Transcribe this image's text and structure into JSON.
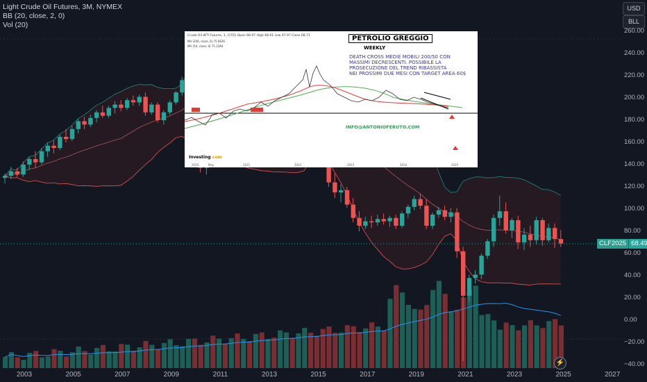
{
  "header": {
    "symbol_line": "Light Crude Oil Futures, 3M, NYMEX",
    "bb_line": "BB (20, close, 2, 0)",
    "vol_line": "Vol (20)"
  },
  "units": [
    "USD",
    "BLL"
  ],
  "price_label": {
    "symbol": "CLF2025",
    "value": "68.49"
  },
  "colors": {
    "up": "#26a69a",
    "down": "#ef5350",
    "basis": "#e57373",
    "band": "#26a69a",
    "vol_ma": "#2196f3",
    "bg": "#131722"
  },
  "icon_names": [
    "bolt-icon"
  ],
  "inset": {
    "title": "PETROLIO GREGGIO",
    "subtitle": "WEEKLY",
    "note_lines": [
      "DEATH CROSS MEDIE MOBILI 200/50 CON",
      "MASSIMI DECRESCENTI. POSSIBILE LA",
      "PROSECUZIONE DEL TREND RIBASSISTA",
      "NEI PROSSIMI DUE MESI CON TARGET AREA 60$"
    ],
    "email": "INFO@ANTONIOFERUTO.COM",
    "header_text": "Crude Oil WTI Futures, 1, (CFD)  Open 68.07  High 68.61  Low 67.97  Close 68.71",
    "ma_line1": "MA (200, close, 0)  75.6626",
    "ma_line2": "MA (50, close, 0)  71.2364",
    "brand": "Investing",
    "brand_suffix": ".com",
    "x_labels": [
      "2020",
      "May",
      "2021",
      "2022",
      "2023",
      "2024",
      "2025"
    ]
  },
  "chart_data": {
    "type": "candlestick",
    "title": "Light Crude Oil Futures, 3M, NYMEX",
    "x_ticks": [
      "2003",
      "2005",
      "2007",
      "2009",
      "2011",
      "2013",
      "2015",
      "2017",
      "2019",
      "2021",
      "2023",
      "2025",
      "2027"
    ],
    "y_ticks": [
      "260.00",
      "240.00",
      "220.00",
      "200.00",
      "180.00",
      "160.00",
      "140.00",
      "120.00",
      "100.00",
      "80.00",
      "60.00",
      "40.00",
      "20.00",
      "0.00",
      "−20.00",
      "−40.00"
    ],
    "ylim": [
      -40,
      260
    ],
    "last_price": 68.49,
    "candles": [
      {
        "o": 128,
        "h": 132,
        "l": 123,
        "c": 130
      },
      {
        "o": 130,
        "h": 138,
        "l": 127,
        "c": 134
      },
      {
        "o": 134,
        "h": 137,
        "l": 129,
        "c": 131
      },
      {
        "o": 131,
        "h": 143,
        "l": 129,
        "c": 140
      },
      {
        "o": 140,
        "h": 147,
        "l": 135,
        "c": 145
      },
      {
        "o": 145,
        "h": 152,
        "l": 137,
        "c": 142
      },
      {
        "o": 142,
        "h": 155,
        "l": 140,
        "c": 152
      },
      {
        "o": 152,
        "h": 160,
        "l": 147,
        "c": 157
      },
      {
        "o": 157,
        "h": 162,
        "l": 150,
        "c": 155
      },
      {
        "o": 155,
        "h": 167,
        "l": 153,
        "c": 165
      },
      {
        "o": 165,
        "h": 172,
        "l": 160,
        "c": 163
      },
      {
        "o": 163,
        "h": 175,
        "l": 161,
        "c": 172
      },
      {
        "o": 172,
        "h": 181,
        "l": 168,
        "c": 179
      },
      {
        "o": 179,
        "h": 183,
        "l": 172,
        "c": 176
      },
      {
        "o": 176,
        "h": 185,
        "l": 174,
        "c": 182
      },
      {
        "o": 182,
        "h": 189,
        "l": 178,
        "c": 187
      },
      {
        "o": 187,
        "h": 193,
        "l": 182,
        "c": 184
      },
      {
        "o": 184,
        "h": 193,
        "l": 182,
        "c": 191
      },
      {
        "o": 191,
        "h": 197,
        "l": 186,
        "c": 194
      },
      {
        "o": 194,
        "h": 198,
        "l": 188,
        "c": 191
      },
      {
        "o": 191,
        "h": 200,
        "l": 189,
        "c": 198
      },
      {
        "o": 198,
        "h": 202,
        "l": 193,
        "c": 196
      },
      {
        "o": 196,
        "h": 203,
        "l": 193,
        "c": 201
      },
      {
        "o": 201,
        "h": 205,
        "l": 184,
        "c": 187
      },
      {
        "o": 187,
        "h": 196,
        "l": 185,
        "c": 194
      },
      {
        "o": 194,
        "h": 196,
        "l": 178,
        "c": 180
      },
      {
        "o": 180,
        "h": 189,
        "l": 176,
        "c": 187
      },
      {
        "o": 187,
        "h": 198,
        "l": 185,
        "c": 196
      },
      {
        "o": 196,
        "h": 206,
        "l": 194,
        "c": 205
      },
      {
        "o": 205,
        "h": 219,
        "l": 202,
        "c": 216
      },
      {
        "o": 216,
        "h": 246,
        "l": 213,
        "c": 244
      },
      {
        "o": 244,
        "h": 252,
        "l": 217,
        "c": 219
      },
      {
        "o": 219,
        "h": 223,
        "l": 133,
        "c": 137
      },
      {
        "o": 137,
        "h": 166,
        "l": 131,
        "c": 160
      },
      {
        "o": 160,
        "h": 168,
        "l": 147,
        "c": 155
      },
      {
        "o": 155,
        "h": 172,
        "l": 152,
        "c": 170
      },
      {
        "o": 170,
        "h": 175,
        "l": 152,
        "c": 165
      },
      {
        "o": 165,
        "h": 180,
        "l": 162,
        "c": 174
      },
      {
        "o": 174,
        "h": 178,
        "l": 165,
        "c": 170
      },
      {
        "o": 170,
        "h": 184,
        "l": 167,
        "c": 180
      },
      {
        "o": 180,
        "h": 186,
        "l": 163,
        "c": 167
      },
      {
        "o": 167,
        "h": 180,
        "l": 164,
        "c": 176
      },
      {
        "o": 176,
        "h": 183,
        "l": 166,
        "c": 170
      },
      {
        "o": 170,
        "h": 183,
        "l": 168,
        "c": 180
      },
      {
        "o": 180,
        "h": 184,
        "l": 170,
        "c": 174
      },
      {
        "o": 174,
        "h": 182,
        "l": 170,
        "c": 179
      },
      {
        "o": 179,
        "h": 187,
        "l": 175,
        "c": 183
      },
      {
        "o": 183,
        "h": 187,
        "l": 176,
        "c": 178
      },
      {
        "o": 178,
        "h": 184,
        "l": 175,
        "c": 181
      },
      {
        "o": 181,
        "h": 189,
        "l": 178,
        "c": 185
      },
      {
        "o": 185,
        "h": 190,
        "l": 180,
        "c": 182
      },
      {
        "o": 182,
        "h": 188,
        "l": 170,
        "c": 173
      },
      {
        "o": 173,
        "h": 178,
        "l": 150,
        "c": 153
      },
      {
        "o": 153,
        "h": 156,
        "l": 120,
        "c": 124
      },
      {
        "o": 124,
        "h": 132,
        "l": 110,
        "c": 115
      },
      {
        "o": 115,
        "h": 122,
        "l": 106,
        "c": 117
      },
      {
        "o": 117,
        "h": 120,
        "l": 101,
        "c": 104
      },
      {
        "o": 104,
        "h": 110,
        "l": 88,
        "c": 92
      },
      {
        "o": 92,
        "h": 98,
        "l": 80,
        "c": 85
      },
      {
        "o": 85,
        "h": 93,
        "l": 82,
        "c": 89
      },
      {
        "o": 89,
        "h": 94,
        "l": 83,
        "c": 88
      },
      {
        "o": 88,
        "h": 95,
        "l": 85,
        "c": 91
      },
      {
        "o": 91,
        "h": 96,
        "l": 86,
        "c": 89
      },
      {
        "o": 89,
        "h": 94,
        "l": 84,
        "c": 92
      },
      {
        "o": 92,
        "h": 95,
        "l": 82,
        "c": 85
      },
      {
        "o": 85,
        "h": 98,
        "l": 83,
        "c": 96
      },
      {
        "o": 96,
        "h": 104,
        "l": 92,
        "c": 102
      },
      {
        "o": 102,
        "h": 112,
        "l": 99,
        "c": 109
      },
      {
        "o": 109,
        "h": 114,
        "l": 100,
        "c": 103
      },
      {
        "o": 103,
        "h": 109,
        "l": 82,
        "c": 85
      },
      {
        "o": 85,
        "h": 97,
        "l": 82,
        "c": 95
      },
      {
        "o": 95,
        "h": 102,
        "l": 92,
        "c": 99
      },
      {
        "o": 99,
        "h": 103,
        "l": 90,
        "c": 93
      },
      {
        "o": 93,
        "h": 101,
        "l": 88,
        "c": 97
      },
      {
        "o": 97,
        "h": 101,
        "l": 56,
        "c": 62
      },
      {
        "o": 62,
        "h": 66,
        "l": -37,
        "c": 22
      },
      {
        "o": 22,
        "h": 41,
        "l": 17,
        "c": 38
      },
      {
        "o": 38,
        "h": 45,
        "l": 33,
        "c": 41
      },
      {
        "o": 41,
        "h": 60,
        "l": 37,
        "c": 58
      },
      {
        "o": 58,
        "h": 73,
        "l": 55,
        "c": 71
      },
      {
        "o": 71,
        "h": 95,
        "l": 66,
        "c": 92
      },
      {
        "o": 92,
        "h": 112,
        "l": 85,
        "c": 98
      },
      {
        "o": 98,
        "h": 106,
        "l": 78,
        "c": 81
      },
      {
        "o": 81,
        "h": 92,
        "l": 74,
        "c": 90
      },
      {
        "o": 90,
        "h": 94,
        "l": 64,
        "c": 70
      },
      {
        "o": 70,
        "h": 83,
        "l": 63,
        "c": 77
      },
      {
        "o": 77,
        "h": 85,
        "l": 66,
        "c": 72
      },
      {
        "o": 72,
        "h": 93,
        "l": 68,
        "c": 90
      },
      {
        "o": 90,
        "h": 92,
        "l": 67,
        "c": 72
      },
      {
        "o": 72,
        "h": 87,
        "l": 70,
        "c": 83
      },
      {
        "o": 83,
        "h": 87,
        "l": 65,
        "c": 73
      },
      {
        "o": 73,
        "h": 81,
        "l": 66,
        "c": 69
      }
    ],
    "volume_ma": "rising to peak near 2020, then declining",
    "series": [
      {
        "name": "Basis (20)"
      },
      {
        "name": "Upper band"
      },
      {
        "name": "Lower band"
      },
      {
        "name": "Volume"
      },
      {
        "name": "Volume MA (20)"
      }
    ]
  }
}
